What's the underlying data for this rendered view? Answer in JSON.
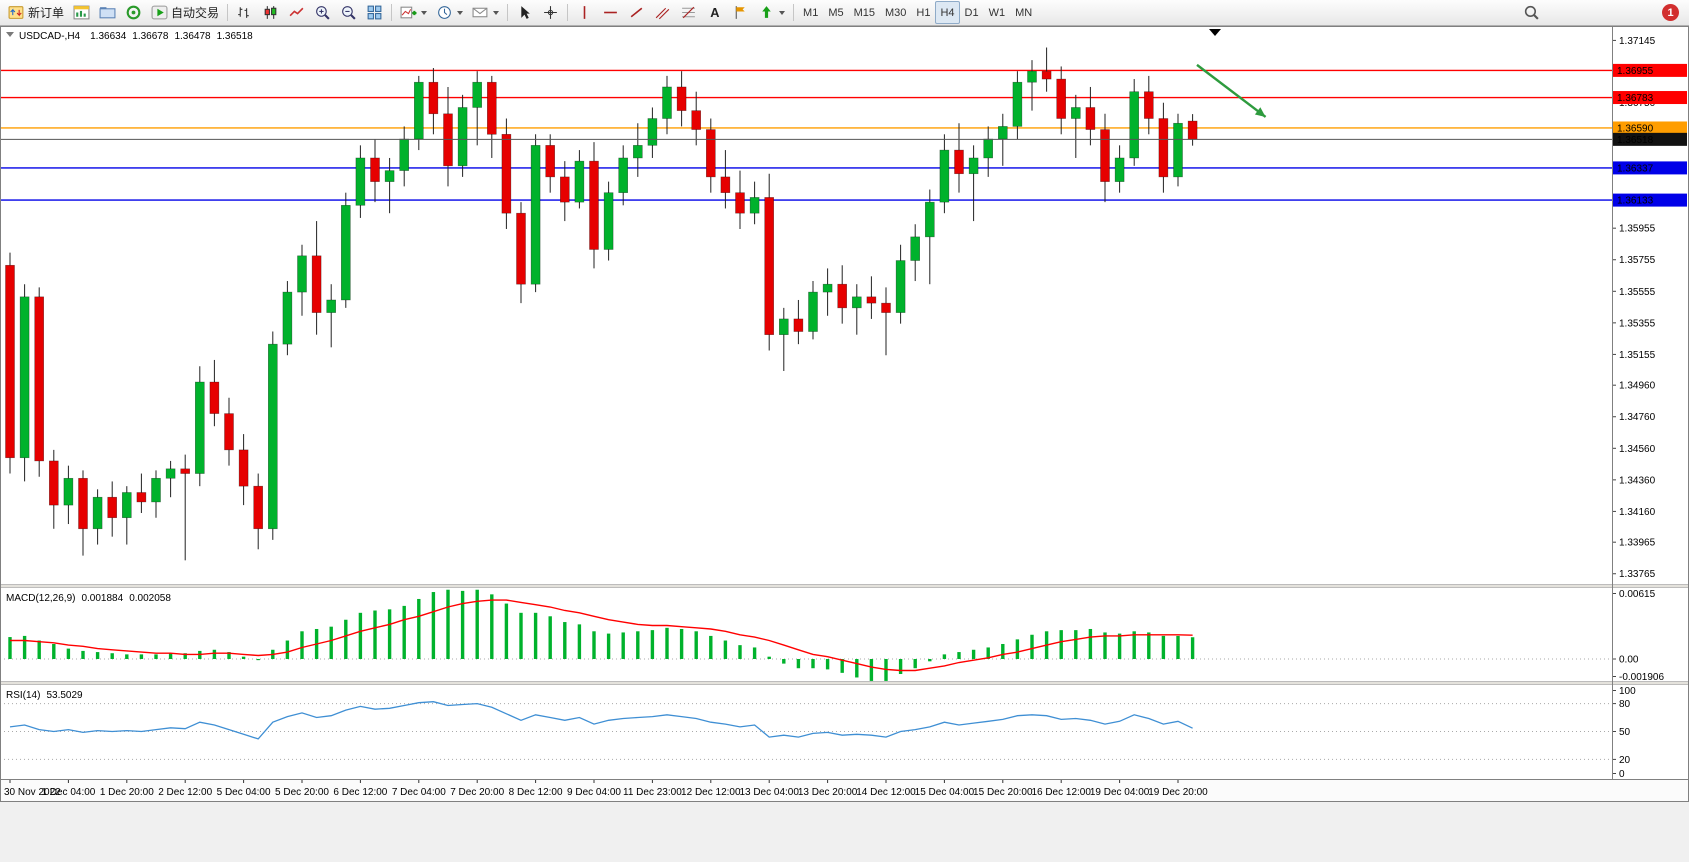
{
  "toolbar": {
    "new_order_label": "新订单",
    "auto_trading_label": "自动交易",
    "timeframes": [
      "M1",
      "M5",
      "M15",
      "M30",
      "H1",
      "H4",
      "D1",
      "W1",
      "MN"
    ],
    "active_timeframe": "H4",
    "notification_count": "1"
  },
  "chart": {
    "symbol": "USDCAD-,H4",
    "ohlc": {
      "open": "1.36634",
      "high": "1.36678",
      "low": "1.36478",
      "close": "1.36518"
    }
  },
  "macd": {
    "label": "MACD(12,26,9)",
    "value_main": "0.001884",
    "value_signal": "0.002058",
    "axis": {
      "max": "0.00615",
      "zero": "0.00",
      "min": "-0.001906"
    }
  },
  "rsi": {
    "label": "RSI(14)",
    "value": "53.5029",
    "axis": [
      "100",
      "80",
      "50",
      "20",
      "0"
    ]
  },
  "chart_data": {
    "type": "candlestick",
    "symbol": "USDCAD",
    "timeframe": "H4",
    "label_every_n_candles": 4,
    "time_labels": [
      "30 Nov 2022",
      "1 Dec 04:00",
      "1 Dec 20:00",
      "2 Dec 12:00",
      "5 Dec 04:00",
      "5 Dec 20:00",
      "6 Dec 12:00",
      "7 Dec 04:00",
      "7 Dec 20:00",
      "8 Dec 12:00",
      "9 Dec 04:00",
      "11 Dec 23:00",
      "12 Dec 12:00",
      "13 Dec 04:00",
      "13 Dec 20:00",
      "14 Dec 12:00",
      "15 Dec 04:00",
      "15 Dec 20:00",
      "16 Dec 12:00",
      "19 Dec 04:00",
      "19 Dec 20:00"
    ],
    "candles": [
      [
        1.3572,
        1.358,
        1.344,
        1.345
      ],
      [
        1.345,
        1.356,
        1.3435,
        1.3552
      ],
      [
        1.3552,
        1.3558,
        1.3438,
        1.3448
      ],
      [
        1.3448,
        1.3455,
        1.3405,
        1.342
      ],
      [
        1.342,
        1.3445,
        1.3408,
        1.3437
      ],
      [
        1.3437,
        1.3442,
        1.3388,
        1.3405
      ],
      [
        1.3405,
        1.343,
        1.3395,
        1.3425
      ],
      [
        1.3425,
        1.3435,
        1.34,
        1.3412
      ],
      [
        1.3412,
        1.3432,
        1.3395,
        1.3428
      ],
      [
        1.3428,
        1.344,
        1.3415,
        1.3422
      ],
      [
        1.3422,
        1.3442,
        1.3412,
        1.3437
      ],
      [
        1.3437,
        1.3448,
        1.3425,
        1.3443
      ],
      [
        1.3443,
        1.3452,
        1.3385,
        1.344
      ],
      [
        1.344,
        1.3508,
        1.3432,
        1.3498
      ],
      [
        1.3498,
        1.3512,
        1.347,
        1.3478
      ],
      [
        1.3478,
        1.3488,
        1.3445,
        1.3455
      ],
      [
        1.3455,
        1.3465,
        1.342,
        1.3432
      ],
      [
        1.3432,
        1.344,
        1.3392,
        1.3405
      ],
      [
        1.3405,
        1.353,
        1.3398,
        1.3522
      ],
      [
        1.3522,
        1.3562,
        1.3515,
        1.3555
      ],
      [
        1.3555,
        1.3585,
        1.354,
        1.3578
      ],
      [
        1.3578,
        1.36,
        1.3528,
        1.3542
      ],
      [
        1.3542,
        1.356,
        1.352,
        1.355
      ],
      [
        1.355,
        1.3618,
        1.3545,
        1.361
      ],
      [
        1.361,
        1.3648,
        1.3602,
        1.364
      ],
      [
        1.364,
        1.3652,
        1.3612,
        1.3625
      ],
      [
        1.3625,
        1.364,
        1.3605,
        1.3632
      ],
      [
        1.3632,
        1.366,
        1.3622,
        1.3652
      ],
      [
        1.3652,
        1.3692,
        1.3645,
        1.3688
      ],
      [
        1.3688,
        1.3697,
        1.3655,
        1.3668
      ],
      [
        1.3668,
        1.3685,
        1.3622,
        1.3635
      ],
      [
        1.3635,
        1.368,
        1.3628,
        1.3672
      ],
      [
        1.3672,
        1.3695,
        1.3648,
        1.3688
      ],
      [
        1.3688,
        1.3692,
        1.364,
        1.3655
      ],
      [
        1.3655,
        1.3665,
        1.3595,
        1.3605
      ],
      [
        1.3605,
        1.3612,
        1.3548,
        1.356
      ],
      [
        1.356,
        1.3655,
        1.3555,
        1.3648
      ],
      [
        1.3648,
        1.3655,
        1.3618,
        1.3628
      ],
      [
        1.3628,
        1.3638,
        1.36,
        1.3612
      ],
      [
        1.3612,
        1.3645,
        1.3608,
        1.3638
      ],
      [
        1.3638,
        1.365,
        1.357,
        1.3582
      ],
      [
        1.3582,
        1.3625,
        1.3575,
        1.3618
      ],
      [
        1.3618,
        1.3648,
        1.361,
        1.364
      ],
      [
        1.364,
        1.3662,
        1.3628,
        1.3648
      ],
      [
        1.3648,
        1.3672,
        1.364,
        1.3665
      ],
      [
        1.3665,
        1.3692,
        1.3655,
        1.3685
      ],
      [
        1.3685,
        1.3695,
        1.366,
        1.367
      ],
      [
        1.367,
        1.3682,
        1.3648,
        1.3658
      ],
      [
        1.3658,
        1.3665,
        1.3618,
        1.3628
      ],
      [
        1.3628,
        1.3645,
        1.3608,
        1.3618
      ],
      [
        1.3618,
        1.3632,
        1.3595,
        1.3605
      ],
      [
        1.3605,
        1.3625,
        1.3598,
        1.3615
      ],
      [
        1.3615,
        1.363,
        1.3518,
        1.3528
      ],
      [
        1.3528,
        1.3545,
        1.3505,
        1.3538
      ],
      [
        1.3538,
        1.355,
        1.3522,
        1.353
      ],
      [
        1.353,
        1.3562,
        1.3525,
        1.3555
      ],
      [
        1.3555,
        1.357,
        1.354,
        1.356
      ],
      [
        1.356,
        1.3572,
        1.3535,
        1.3545
      ],
      [
        1.3545,
        1.356,
        1.3528,
        1.3552
      ],
      [
        1.3552,
        1.3565,
        1.3538,
        1.3548
      ],
      [
        1.3548,
        1.3558,
        1.3515,
        1.3542
      ],
      [
        1.3542,
        1.3585,
        1.3535,
        1.3575
      ],
      [
        1.3575,
        1.3598,
        1.3562,
        1.359
      ],
      [
        1.359,
        1.362,
        1.356,
        1.3612
      ],
      [
        1.3612,
        1.3655,
        1.3605,
        1.3645
      ],
      [
        1.3645,
        1.3662,
        1.3618,
        1.363
      ],
      [
        1.363,
        1.3648,
        1.36,
        1.364
      ],
      [
        1.364,
        1.366,
        1.3628,
        1.3652
      ],
      [
        1.3652,
        1.3668,
        1.3635,
        1.366
      ],
      [
        1.366,
        1.3695,
        1.3652,
        1.3688
      ],
      [
        1.3688,
        1.3702,
        1.367,
        1.3695
      ],
      [
        1.3695,
        1.371,
        1.3682,
        1.369
      ],
      [
        1.369,
        1.3698,
        1.3655,
        1.3665
      ],
      [
        1.3665,
        1.368,
        1.364,
        1.3672
      ],
      [
        1.3672,
        1.3685,
        1.3648,
        1.3658
      ],
      [
        1.3658,
        1.3668,
        1.3612,
        1.3625
      ],
      [
        1.3625,
        1.3648,
        1.3618,
        1.364
      ],
      [
        1.364,
        1.369,
        1.3635,
        1.3682
      ],
      [
        1.3682,
        1.3692,
        1.3655,
        1.3665
      ],
      [
        1.3665,
        1.3675,
        1.3618,
        1.3628
      ],
      [
        1.3628,
        1.3668,
        1.3622,
        1.3662
      ],
      [
        1.36634,
        1.36678,
        1.36478,
        1.36518
      ]
    ],
    "price_axis_ticks": [
      {
        "label": "1.37145",
        "price": 1.37145
      },
      {
        "label": "1.36945",
        "price": 1.36945
      },
      {
        "label": "1.36750",
        "price": 1.3675
      },
      {
        "label": "1.35955",
        "price": 1.35955
      },
      {
        "label": "1.35755",
        "price": 1.35755
      },
      {
        "label": "1.35555",
        "price": 1.35555
      },
      {
        "label": "1.35355",
        "price": 1.35355
      },
      {
        "label": "1.35155",
        "price": 1.35155
      },
      {
        "label": "1.34960",
        "price": 1.3496
      },
      {
        "label": "1.34760",
        "price": 1.3476
      },
      {
        "label": "1.34560",
        "price": 1.3456
      },
      {
        "label": "1.34360",
        "price": 1.3436
      },
      {
        "label": "1.34160",
        "price": 1.3416
      },
      {
        "label": "1.33965",
        "price": 1.33965
      },
      {
        "label": "1.33765",
        "price": 1.33765
      }
    ],
    "horizontal_lines": [
      {
        "label": "1.36955",
        "price": 1.36955,
        "color": "#ff0000"
      },
      {
        "label": "1.36783",
        "price": 1.36783,
        "color": "#ff0000"
      },
      {
        "label": "1.36590",
        "price": 1.3659,
        "color": "#ff9d00"
      },
      {
        "label": "1.36337",
        "price": 1.36337,
        "color": "#0000e8"
      },
      {
        "label": "1.36133",
        "price": 1.36133,
        "color": "#0000e8"
      }
    ],
    "current_price": {
      "label": "1.36518",
      "price": 1.36518,
      "line_color": "#555555",
      "box_color": "#111111"
    },
    "macd": {
      "range": {
        "max": 0.00615,
        "min": -0.001906
      },
      "histogram": [
        0.0019,
        0.002,
        0.0016,
        0.0013,
        0.0009,
        0.0007,
        0.0006,
        0.0005,
        0.0004,
        0.0004,
        0.0004,
        0.0005,
        0.0005,
        0.0007,
        0.0008,
        0.0006,
        0.0002,
        -0.0001,
        0.0008,
        0.0016,
        0.0024,
        0.0026,
        0.0028,
        0.0034,
        0.004,
        0.0042,
        0.0043,
        0.0046,
        0.0052,
        0.0058,
        0.006,
        0.0059,
        0.006,
        0.0056,
        0.0048,
        0.004,
        0.004,
        0.0037,
        0.0032,
        0.003,
        0.0024,
        0.0022,
        0.0023,
        0.0024,
        0.0025,
        0.0027,
        0.0026,
        0.0024,
        0.002,
        0.0016,
        0.0012,
        0.001,
        0.0002,
        -0.0004,
        -0.0008,
        -0.0008,
        -0.0009,
        -0.0012,
        -0.0016,
        -0.0019,
        -0.0019,
        -0.0013,
        -0.0008,
        -0.0002,
        0.0004,
        0.0006,
        0.0008,
        0.001,
        0.0013,
        0.0017,
        0.0021,
        0.0024,
        0.0025,
        0.0025,
        0.0026,
        0.0023,
        0.0022,
        0.0024,
        0.0023,
        0.002,
        0.002,
        0.001884
      ],
      "signal": [
        0.0016,
        0.0016,
        0.0015,
        0.0014,
        0.0012,
        0.0011,
        0.0009,
        0.0008,
        0.0007,
        0.0006,
        0.0005,
        0.0005,
        0.0004,
        0.0004,
        0.0005,
        0.0005,
        0.0004,
        0.0003,
        0.0004,
        0.0006,
        0.001,
        0.0013,
        0.0016,
        0.002,
        0.0024,
        0.0027,
        0.003,
        0.0034,
        0.0037,
        0.0041,
        0.0045,
        0.0048,
        0.005,
        0.0051,
        0.0051,
        0.0049,
        0.0047,
        0.0045,
        0.0042,
        0.004,
        0.0037,
        0.0034,
        0.0032,
        0.003,
        0.0029,
        0.0029,
        0.0028,
        0.0027,
        0.0026,
        0.0024,
        0.0021,
        0.0019,
        0.0016,
        0.0012,
        0.0008,
        0.0004,
        0.0002,
        -0.0001,
        -0.0004,
        -0.0007,
        -0.0009,
        -0.001,
        -0.001,
        -0.0008,
        -0.0006,
        -0.0003,
        -0.0001,
        0.0001,
        0.0004,
        0.0006,
        0.0009,
        0.0012,
        0.0015,
        0.0017,
        0.0019,
        0.002,
        0.002,
        0.0021,
        0.0021,
        0.0021,
        0.0021,
        0.002058
      ]
    },
    "rsi": {
      "range": [
        0,
        100
      ],
      "levels": [
        80,
        50,
        20
      ],
      "values": [
        55,
        57,
        52,
        50,
        52,
        49,
        51,
        50,
        51,
        50,
        52,
        54,
        53,
        60,
        57,
        52,
        47,
        42,
        60,
        66,
        70,
        65,
        67,
        73,
        77,
        74,
        75,
        78,
        81,
        82,
        78,
        79,
        80,
        76,
        69,
        62,
        68,
        65,
        62,
        65,
        58,
        62,
        64,
        65,
        66,
        68,
        66,
        64,
        60,
        58,
        55,
        57,
        44,
        46,
        44,
        48,
        49,
        46,
        47,
        46,
        44,
        50,
        52,
        55,
        60,
        57,
        59,
        61,
        63,
        67,
        68,
        67,
        63,
        64,
        62,
        58,
        61,
        68,
        64,
        58,
        61,
        53.5
      ]
    },
    "annotation_arrow": {
      "from_index": 81.3,
      "from_price": 1.3699,
      "to_index": 86,
      "to_price": 1.3666,
      "color": "#2e9b3e"
    },
    "colors": {
      "up": "#00b22c",
      "down": "#e60000",
      "macd_histogram": "#00b22c",
      "macd_signal": "#ff0000",
      "rsi_line": "#3f8fd4"
    }
  }
}
